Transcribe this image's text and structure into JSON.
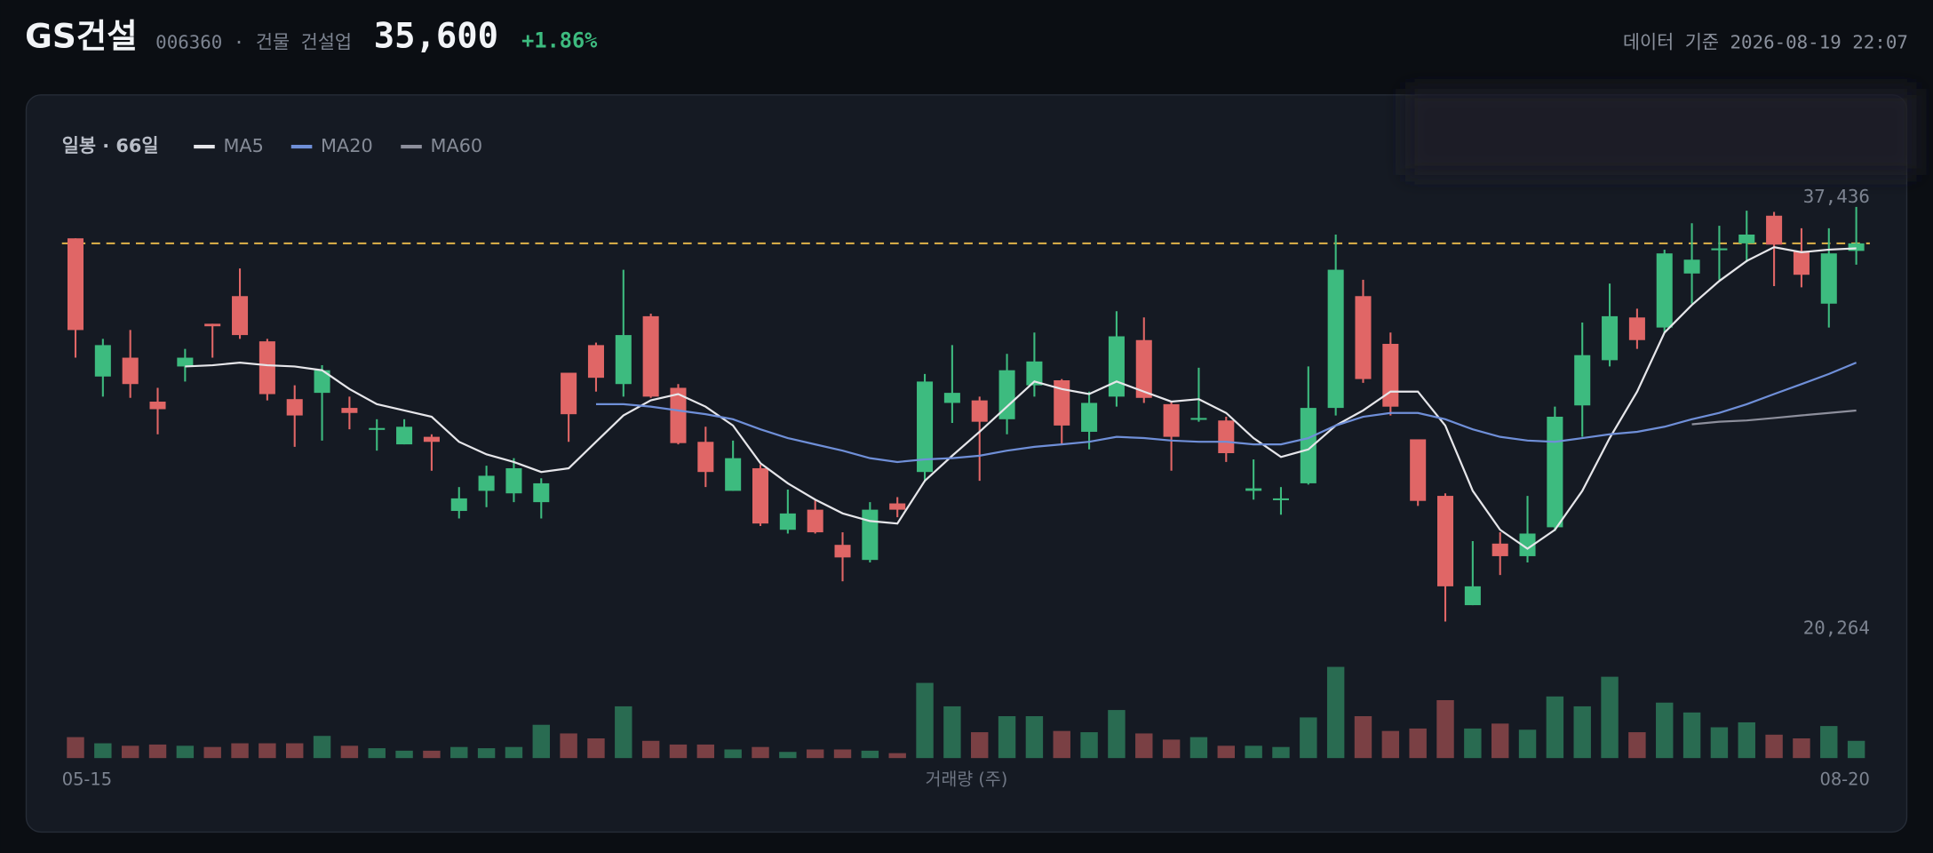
{
  "header": {
    "name": "GS건설",
    "code_sector": "006360 · 건물 건설업",
    "price": "35,600",
    "change": "+1.86%",
    "timestamp": "데이터 기준 2026-08-19 22:07"
  },
  "chart_data": {
    "type": "candlestick",
    "label": "일봉 · 66일",
    "up_color": "#3dbb7f",
    "down_color": "#e06666",
    "price_line_color": "#e0b34a",
    "categories": [
      "05-15",
      null,
      null,
      null,
      null,
      null,
      null,
      null,
      null,
      null,
      null,
      null,
      null,
      null,
      null,
      null,
      null,
      null,
      null,
      null,
      null,
      null,
      null,
      null,
      null,
      null,
      null,
      null,
      null,
      null,
      null,
      null,
      null,
      null,
      null,
      null,
      null,
      null,
      null,
      null,
      null,
      null,
      null,
      null,
      null,
      null,
      null,
      null,
      null,
      null,
      null,
      null,
      null,
      null,
      null,
      null,
      null,
      null,
      null,
      null,
      null,
      null,
      null,
      null,
      null,
      "08-20"
    ],
    "open": [
      35800,
      30300,
      31050,
      29300,
      30700,
      32400,
      33500,
      31700,
      29400,
      29650,
      29050,
      28200,
      27600,
      27900,
      24950,
      25750,
      25650,
      25300,
      30450,
      31550,
      30000,
      32700,
      29850,
      27700,
      25750,
      26650,
      24200,
      25000,
      23600,
      23000,
      25250,
      26500,
      29250,
      29350,
      28600,
      29950,
      30150,
      28100,
      29500,
      31750,
      29200,
      28600,
      28550,
      25750,
      25400,
      26050,
      29050,
      33500,
      31600,
      27800,
      25550,
      21200,
      23650,
      23150,
      24300,
      29150,
      30950,
      32650,
      32250,
      34400,
      35350,
      35600,
      36700,
      35300,
      33200,
      35300
    ],
    "high": [
      35800,
      31800,
      32150,
      29850,
      31400,
      32400,
      34600,
      31800,
      29950,
      30750,
      29500,
      28600,
      28600,
      28000,
      25900,
      26750,
      27050,
      26250,
      30450,
      31650,
      34550,
      32800,
      30000,
      28300,
      27750,
      26800,
      25800,
      25400,
      24100,
      25300,
      25500,
      30400,
      31550,
      29500,
      31200,
      32050,
      30200,
      29700,
      32900,
      32650,
      29300,
      30650,
      28700,
      27000,
      25900,
      30700,
      35950,
      34150,
      32050,
      27800,
      25650,
      23750,
      24100,
      25550,
      29100,
      32450,
      34000,
      33000,
      35350,
      36400,
      36300,
      36900,
      36850,
      36200,
      36200,
      37050
    ],
    "low": [
      31050,
      29500,
      29450,
      28000,
      30100,
      31050,
      31800,
      29350,
      27500,
      27750,
      28200,
      27350,
      27600,
      26550,
      24650,
      25100,
      25300,
      24650,
      27700,
      29700,
      29500,
      29450,
      27600,
      25900,
      25750,
      24350,
      24050,
      24050,
      22150,
      22900,
      24700,
      26100,
      28450,
      26150,
      28000,
      29500,
      27600,
      27400,
      29100,
      29250,
      26550,
      28500,
      26900,
      25400,
      24800,
      26000,
      28750,
      30050,
      28750,
      25150,
      20550,
      21200,
      22400,
      22900,
      24150,
      27900,
      30700,
      31400,
      32050,
      33200,
      34150,
      34850,
      33900,
      33850,
      32250,
      34750
    ],
    "close": [
      32150,
      31550,
      30000,
      29000,
      31050,
      32300,
      31950,
      29600,
      28750,
      30550,
      28850,
      28250,
      28300,
      27700,
      25450,
      26350,
      26650,
      26050,
      28800,
      30250,
      31950,
      29500,
      27650,
      26500,
      27050,
      24450,
      24850,
      24100,
      23100,
      25000,
      25000,
      30100,
      29650,
      28500,
      30550,
      30900,
      28350,
      29250,
      31900,
      29450,
      27900,
      28650,
      27250,
      25850,
      25450,
      29050,
      34550,
      30200,
      29100,
      25350,
      21950,
      21950,
      23150,
      24050,
      28700,
      31150,
      32700,
      31750,
      35200,
      34950,
      35400,
      35950,
      35550,
      34350,
      35200,
      35600
    ],
    "series": [
      {
        "name": "MA5",
        "color": "#e6e6ea",
        "values": [
          null,
          null,
          null,
          null,
          30700,
          30750,
          30850,
          30750,
          30700,
          30550,
          29800,
          29200,
          28950,
          28700,
          27700,
          27200,
          26900,
          26500,
          26650,
          27700,
          28750,
          29350,
          29600,
          29100,
          28350,
          26850,
          26050,
          25400,
          24850,
          24550,
          24450,
          26150,
          27150,
          28100,
          29100,
          30100,
          29800,
          29600,
          30100,
          29700,
          29300,
          29400,
          28850,
          27850,
          27100,
          27400,
          28350,
          28950,
          29700,
          29700,
          28350,
          25750,
          24200,
          23450,
          24200,
          25750,
          27850,
          29700,
          32050,
          33150,
          34100,
          34900,
          35450,
          35250,
          35350,
          35400
        ]
      },
      {
        "name": "MA20",
        "color": "#6f8fd8",
        "values": [
          null,
          null,
          null,
          null,
          null,
          null,
          null,
          null,
          null,
          null,
          null,
          null,
          null,
          null,
          null,
          null,
          null,
          null,
          null,
          29200,
          29200,
          29100,
          28950,
          28800,
          28600,
          28200,
          27850,
          27600,
          27350,
          27050,
          26900,
          27000,
          27050,
          27150,
          27350,
          27500,
          27600,
          27700,
          27900,
          27850,
          27750,
          27700,
          27700,
          27600,
          27600,
          27850,
          28350,
          28700,
          28850,
          28850,
          28600,
          28200,
          27900,
          27750,
          27700,
          27850,
          28000,
          28100,
          28300,
          28600,
          28850,
          29200,
          29600,
          30000,
          30400,
          30850
        ]
      },
      {
        "name": "MA60",
        "color": "#8d8f9c",
        "values": [
          null,
          null,
          null,
          null,
          null,
          null,
          null,
          null,
          null,
          null,
          null,
          null,
          null,
          null,
          null,
          null,
          null,
          null,
          null,
          null,
          null,
          null,
          null,
          null,
          null,
          null,
          null,
          null,
          null,
          null,
          null,
          null,
          null,
          null,
          null,
          null,
          null,
          null,
          null,
          null,
          null,
          null,
          null,
          null,
          null,
          null,
          null,
          null,
          null,
          null,
          null,
          null,
          null,
          null,
          null,
          null,
          null,
          null,
          null,
          28400,
          28500,
          28550,
          28650,
          28750,
          28850,
          28950
        ]
      }
    ],
    "volume": {
      "label": "거래량 (주)",
      "values": [
        170000,
        120000,
        100000,
        110000,
        100000,
        90000,
        120000,
        120000,
        120000,
        180000,
        100000,
        80000,
        60000,
        60000,
        90000,
        80000,
        90000,
        270000,
        200000,
        160000,
        420000,
        140000,
        110000,
        110000,
        70000,
        90000,
        50000,
        70000,
        70000,
        60000,
        40000,
        610000,
        420000,
        210000,
        340000,
        340000,
        220000,
        210000,
        390000,
        200000,
        150000,
        170000,
        100000,
        100000,
        90000,
        330000,
        740000,
        340000,
        220000,
        240000,
        470000,
        240000,
        280000,
        230000,
        500000,
        420000,
        660000,
        210000,
        450000,
        370000,
        250000,
        290000,
        190000,
        160000,
        260000,
        140000
      ]
    },
    "ylim": [
      20000,
      38000
    ],
    "yticks": [
      {
        "value": 37436,
        "label": "37,436"
      },
      {
        "value": 20264,
        "label": "20,264"
      }
    ]
  }
}
